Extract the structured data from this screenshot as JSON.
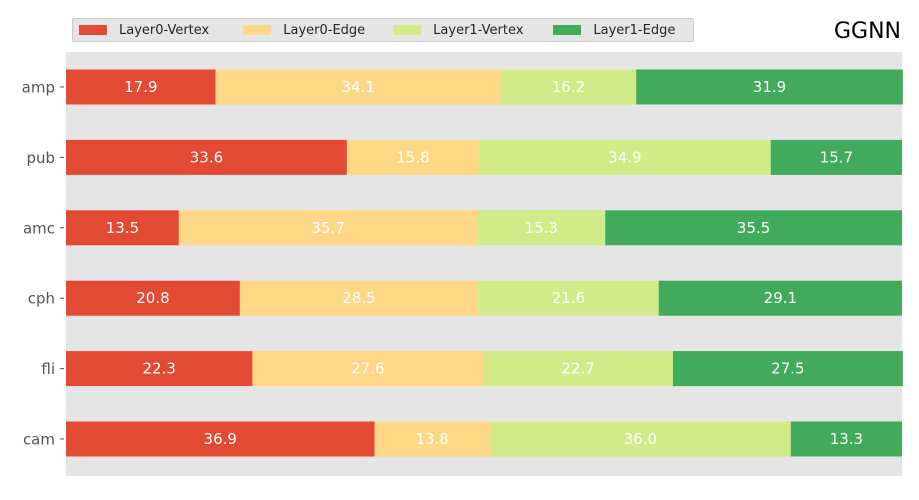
{
  "chart_data": {
    "type": "bar",
    "orientation": "horizontal",
    "stacked": true,
    "normalized_percent": true,
    "title": "GGNN",
    "categories": [
      "amp",
      "pub",
      "amc",
      "cph",
      "fli",
      "cam"
    ],
    "series": [
      {
        "name": "Layer0-Vertex",
        "color": "#e34a33",
        "values": [
          17.9,
          33.6,
          13.5,
          20.8,
          22.3,
          36.9
        ]
      },
      {
        "name": "Layer0-Edge",
        "color": "#fed787",
        "values": [
          34.1,
          15.8,
          35.7,
          28.5,
          27.6,
          13.8
        ]
      },
      {
        "name": "Layer1-Vertex",
        "color": "#d3ea89",
        "values": [
          16.2,
          34.9,
          15.3,
          21.6,
          22.7,
          36.0
        ]
      },
      {
        "name": "Layer1-Edge",
        "color": "#41aa5b",
        "values": [
          31.9,
          15.7,
          35.5,
          29.1,
          27.5,
          13.3
        ]
      }
    ],
    "xlim": [
      0,
      100
    ],
    "grid": false,
    "legend_position": "top-left"
  }
}
